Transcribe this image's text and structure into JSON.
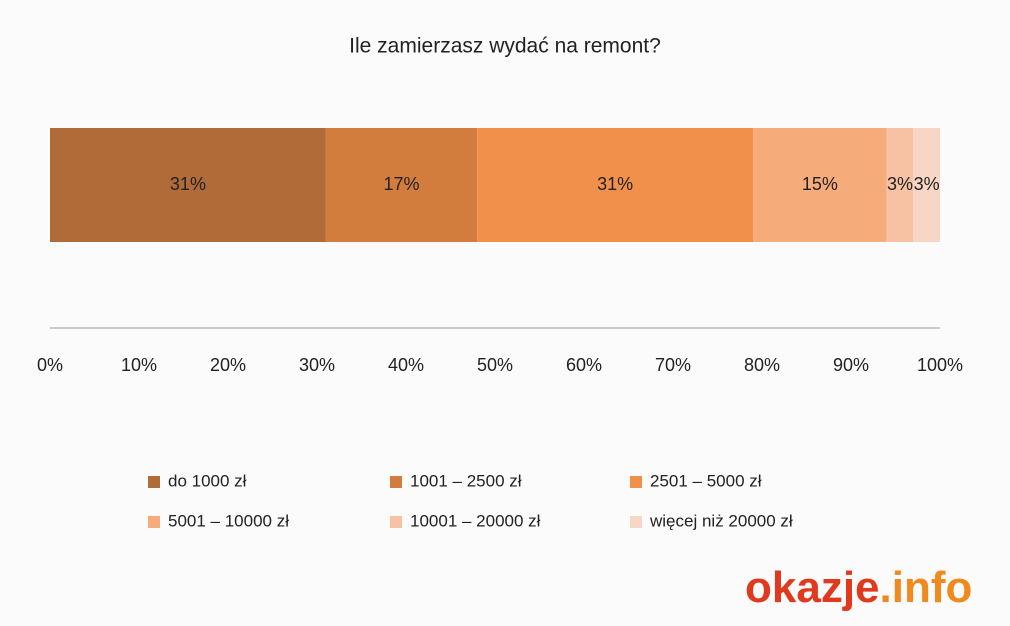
{
  "chart_data": {
    "type": "stacked_bar_100",
    "orientation": "horizontal",
    "title": "Ile zamierzasz wydać na remont?",
    "series": [
      {
        "name": "do 1000 zł",
        "color": "#b06b38",
        "values": [
          31
        ],
        "value_labels": [
          "31%"
        ]
      },
      {
        "name": "1001 – 2500 zł",
        "color": "#d27d3e",
        "values": [
          17
        ],
        "value_labels": [
          "17%"
        ]
      },
      {
        "name": "2501 – 5000 zł",
        "color": "#f0904a",
        "values": [
          31
        ],
        "value_labels": [
          "31%"
        ]
      },
      {
        "name": "5001 – 10000 zł",
        "color": "#f5ab7a",
        "values": [
          15
        ],
        "value_labels": [
          "15%"
        ]
      },
      {
        "name": "10001 – 20000 zł",
        "color": "#f7c2a4",
        "values": [
          3
        ],
        "value_labels": [
          "3%"
        ]
      },
      {
        "name": "więcej niż 20000 zł",
        "color": "#f8d6c5",
        "values": [
          3
        ],
        "value_labels": [
          "3%"
        ]
      }
    ],
    "xlim": [
      0,
      100
    ],
    "xticks": [
      {
        "value": 0,
        "label": "0%"
      },
      {
        "value": 10,
        "label": "10%"
      },
      {
        "value": 20,
        "label": "20%"
      },
      {
        "value": 30,
        "label": "30%"
      },
      {
        "value": 40,
        "label": "40%"
      },
      {
        "value": 50,
        "label": "50%"
      },
      {
        "value": 60,
        "label": "60%"
      },
      {
        "value": 70,
        "label": "70%"
      },
      {
        "value": 80,
        "label": "80%"
      },
      {
        "value": 90,
        "label": "90%"
      },
      {
        "value": 100,
        "label": "100%"
      }
    ],
    "legend": "bottom"
  },
  "logo": {
    "name": "okazje",
    "suffix": ".info"
  }
}
